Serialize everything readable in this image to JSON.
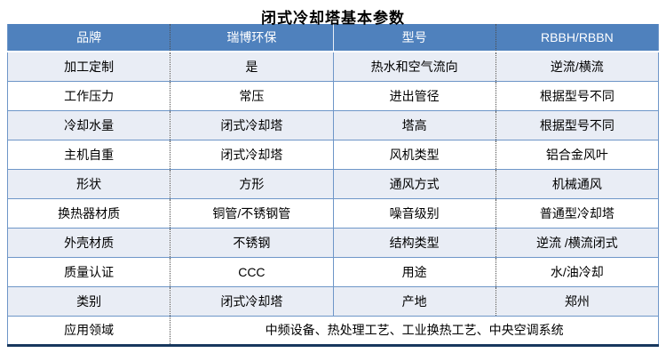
{
  "page": {
    "title": "闭式冷却塔基本参数"
  },
  "colors": {
    "header_bg": "#4f81bd",
    "header_text": "#ffffff",
    "band_bg": "#e9edf5",
    "row_border_blue": "#6e96c8",
    "bottom_border_navy": "#17375e",
    "dotted_divider": "#4d4d4d"
  },
  "table": {
    "header": {
      "c1": "品牌",
      "c2": "瑞博环保",
      "c3": "型号",
      "c4": "RBBH/RBBN"
    },
    "rows": [
      {
        "c1": "加工定制",
        "c2": "是",
        "c3": "热水和空气流向",
        "c4": "逆流/横流"
      },
      {
        "c1": "工作压力",
        "c2": "常压",
        "c3": "进出管径",
        "c4": "根据型号不同"
      },
      {
        "c1": "冷却水量",
        "c2": "闭式冷却塔",
        "c3": "塔高",
        "c4": "根据型号不同"
      },
      {
        "c1": "主机自重",
        "c2": "闭式冷却塔",
        "c3": "风机类型",
        "c4": "铝合金风叶"
      },
      {
        "c1": "形状",
        "c2": "方形",
        "c3": "通风方式",
        "c4": "机械通风"
      },
      {
        "c1": "换热器材质",
        "c2": "铜管/不锈钢管",
        "c3": "噪音级别",
        "c4": "普通型冷却塔"
      },
      {
        "c1": "外壳材质",
        "c2": "不锈钢",
        "c3": "结构类型",
        "c4": "逆流 /横流闭式"
      },
      {
        "c1": "质量认证",
        "c2": "CCC",
        "c3": "用途",
        "c4": "水/油冷却"
      },
      {
        "c1": "类别",
        "c2": "闭式冷却塔",
        "c3": "产地",
        "c4": "郑州"
      }
    ],
    "merged_row": {
      "label": "应用领域",
      "value": "中频设备、热处理工艺、工业换热工艺、中央空调系统"
    }
  }
}
